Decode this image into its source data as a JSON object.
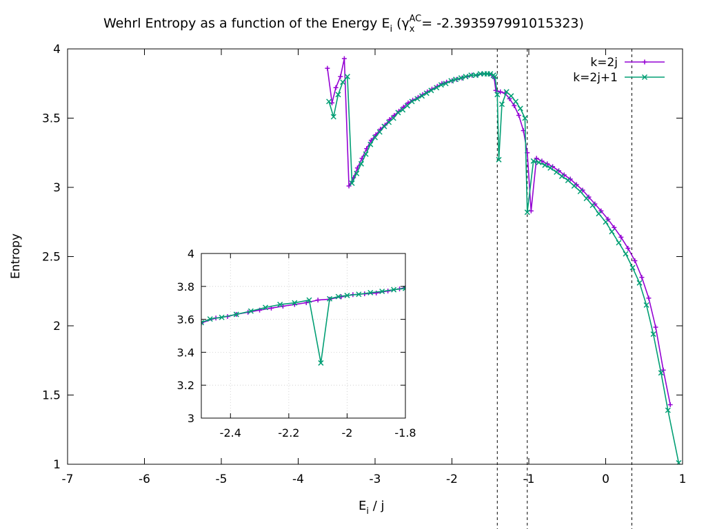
{
  "chart_data": [
    {
      "type": "line",
      "title": "Wehrl Entropy as a function of the Energy E",
      "title_sub": "i",
      "title_gamma": "γ",
      "title_gamma_sub": "x",
      "title_gamma_sup": "AC",
      "title_value": "= -2.393597991015323)",
      "xlabel": "E",
      "xlabel_sub": "i",
      "xlabel_tail": " / j",
      "ylabel": "Entropy",
      "xlim": [
        -7,
        1
      ],
      "ylim": [
        1,
        4
      ],
      "xticks": [
        -7,
        -6,
        -5,
        -4,
        -3,
        -2,
        -1,
        0,
        1
      ],
      "yticks": [
        1,
        1.5,
        2,
        2.5,
        3,
        3.5,
        4
      ],
      "grid": false,
      "legend_position": "top-right",
      "vlines": [
        -1.41,
        -1.02,
        0.34
      ],
      "series": [
        {
          "name": "k=2j",
          "color": "#9400d3",
          "marker": "plus",
          "x": [
            -3.62,
            -3.56,
            -3.51,
            -3.45,
            -3.4,
            -3.34,
            -3.28,
            -3.23,
            -3.17,
            -3.11,
            -3.05,
            -2.99,
            -2.93,
            -2.87,
            -2.81,
            -2.75,
            -2.69,
            -2.63,
            -2.57,
            -2.51,
            -2.44,
            -2.38,
            -2.32,
            -2.26,
            -2.19,
            -2.13,
            -2.07,
            -2.0,
            -1.94,
            -1.87,
            -1.8,
            -1.74,
            -1.67,
            -1.61,
            -1.56,
            -1.52,
            -1.48,
            -1.45,
            -1.43,
            -1.37,
            -1.31,
            -1.25,
            -1.19,
            -1.13,
            -1.07,
            -1.02,
            -0.97,
            -0.9,
            -0.83,
            -0.76,
            -0.69,
            -0.61,
            -0.54,
            -0.46,
            -0.38,
            -0.3,
            -0.22,
            -0.14,
            -0.06,
            0.03,
            0.11,
            0.2,
            0.29,
            0.38,
            0.47,
            0.56,
            0.65,
            0.75,
            0.84
          ],
          "y": [
            3.86,
            3.61,
            3.72,
            3.8,
            3.93,
            3.01,
            3.07,
            3.14,
            3.21,
            3.28,
            3.34,
            3.38,
            3.42,
            3.45,
            3.49,
            3.52,
            3.55,
            3.58,
            3.61,
            3.63,
            3.65,
            3.67,
            3.69,
            3.71,
            3.73,
            3.75,
            3.76,
            3.77,
            3.78,
            3.79,
            3.8,
            3.81,
            3.81,
            3.82,
            3.82,
            3.82,
            3.81,
            3.79,
            3.7,
            3.69,
            3.68,
            3.64,
            3.59,
            3.52,
            3.41,
            3.25,
            2.83,
            3.21,
            3.19,
            3.17,
            3.15,
            3.12,
            3.09,
            3.06,
            3.02,
            2.98,
            2.93,
            2.88,
            2.83,
            2.77,
            2.71,
            2.64,
            2.56,
            2.47,
            2.35,
            2.2,
            1.99,
            1.68,
            1.43
          ]
        },
        {
          "name": "k=2j+1",
          "color": "#009e73",
          "marker": "cross",
          "x": [
            -3.6,
            -3.54,
            -3.48,
            -3.42,
            -3.36,
            -3.3,
            -3.24,
            -3.18,
            -3.12,
            -3.06,
            -3.0,
            -2.94,
            -2.88,
            -2.82,
            -2.76,
            -2.7,
            -2.64,
            -2.58,
            -2.52,
            -2.45,
            -2.39,
            -2.33,
            -2.27,
            -2.2,
            -2.14,
            -2.08,
            -2.01,
            -1.95,
            -1.88,
            -1.82,
            -1.75,
            -1.69,
            -1.63,
            -1.58,
            -1.54,
            -1.5,
            -1.46,
            -1.44,
            -1.41,
            -1.39,
            -1.35,
            -1.29,
            -1.23,
            -1.17,
            -1.11,
            -1.05,
            -1.02,
            -0.94,
            -0.87,
            -0.79,
            -0.72,
            -0.64,
            -0.57,
            -0.49,
            -0.41,
            -0.33,
            -0.25,
            -0.17,
            -0.09,
            0.0,
            0.08,
            0.17,
            0.26,
            0.35,
            0.44,
            0.53,
            0.62,
            0.72,
            0.81,
            0.95
          ],
          "y": [
            3.62,
            3.51,
            3.67,
            3.76,
            3.8,
            3.03,
            3.1,
            3.17,
            3.24,
            3.31,
            3.36,
            3.4,
            3.44,
            3.47,
            3.5,
            3.54,
            3.56,
            3.59,
            3.62,
            3.64,
            3.66,
            3.68,
            3.7,
            3.72,
            3.74,
            3.75,
            3.77,
            3.78,
            3.79,
            3.8,
            3.81,
            3.81,
            3.82,
            3.82,
            3.82,
            3.82,
            3.81,
            3.8,
            3.67,
            3.2,
            3.6,
            3.69,
            3.66,
            3.62,
            3.57,
            3.5,
            2.82,
            3.19,
            3.18,
            3.16,
            3.14,
            3.11,
            3.08,
            3.05,
            3.01,
            2.97,
            2.92,
            2.87,
            2.81,
            2.75,
            2.68,
            2.6,
            2.52,
            2.42,
            2.31,
            2.15,
            1.94,
            1.66,
            1.39,
            1.01
          ]
        }
      ]
    },
    {
      "type": "line",
      "title": "",
      "xlabel": "",
      "ylabel": "",
      "xlim": [
        -2.5,
        -1.8
      ],
      "ylim": [
        3,
        4
      ],
      "xticks": [
        -2.4,
        -2.2,
        -2,
        -1.8
      ],
      "yticks": [
        3,
        3.2,
        3.4,
        3.6,
        3.8,
        4
      ],
      "grid": true,
      "series": [
        {
          "name": "k=2j",
          "color": "#9400d3",
          "marker": "plus",
          "x": [
            -2.5,
            -2.45,
            -2.41,
            -2.38,
            -2.34,
            -2.3,
            -2.26,
            -2.22,
            -2.18,
            -2.14,
            -2.1,
            -2.06,
            -2.02,
            -1.98,
            -1.94,
            -1.9,
            -1.86,
            -1.82,
            -1.8
          ],
          "y": [
            3.578,
            3.608,
            3.617,
            3.63,
            3.643,
            3.656,
            3.668,
            3.68,
            3.69,
            3.701,
            3.717,
            3.722,
            3.737,
            3.75,
            3.755,
            3.76,
            3.772,
            3.785,
            3.793
          ]
        },
        {
          "name": "k=2j+1",
          "color": "#009e73",
          "marker": "cross",
          "x": [
            -2.5,
            -2.47,
            -2.43,
            -2.38,
            -2.33,
            -2.28,
            -2.23,
            -2.18,
            -2.13,
            -2.09,
            -2.06,
            -2.03,
            -2.0,
            -1.96,
            -1.92,
            -1.88,
            -1.84,
            -1.8
          ],
          "y": [
            3.58,
            3.602,
            3.612,
            3.63,
            3.65,
            3.672,
            3.69,
            3.7,
            3.717,
            3.335,
            3.725,
            3.738,
            3.745,
            3.752,
            3.762,
            3.77,
            3.78,
            3.788
          ]
        }
      ]
    }
  ]
}
